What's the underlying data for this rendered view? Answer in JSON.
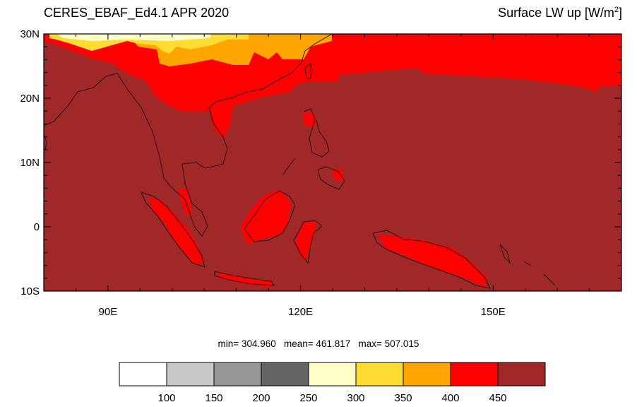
{
  "title": {
    "left": "CERES_EBAF_Ed4.1 APR 2020",
    "right_main": "Surface LW up [W/m",
    "right_sup": "2",
    "right_end": "]"
  },
  "map": {
    "lon_range": [
      80,
      170
    ],
    "lat_range": [
      -10,
      30
    ],
    "lat_labels": [
      "30N",
      "20N",
      "10N",
      "0",
      "10S"
    ],
    "lon_labels": [
      "90E",
      "120E",
      "150E"
    ]
  },
  "stats": {
    "min": "304.960",
    "mean": "461.817",
    "max": "507.015"
  },
  "colorbar": {
    "colors": [
      "#ffffff",
      "#c8c8c8",
      "#969696",
      "#646464",
      "#ffffc8",
      "#ffdc32",
      "#ffa500",
      "#ff0000",
      "#a02828"
    ],
    "labels": [
      "100",
      "150",
      "200",
      "250",
      "300",
      "350",
      "400",
      "450"
    ]
  }
}
